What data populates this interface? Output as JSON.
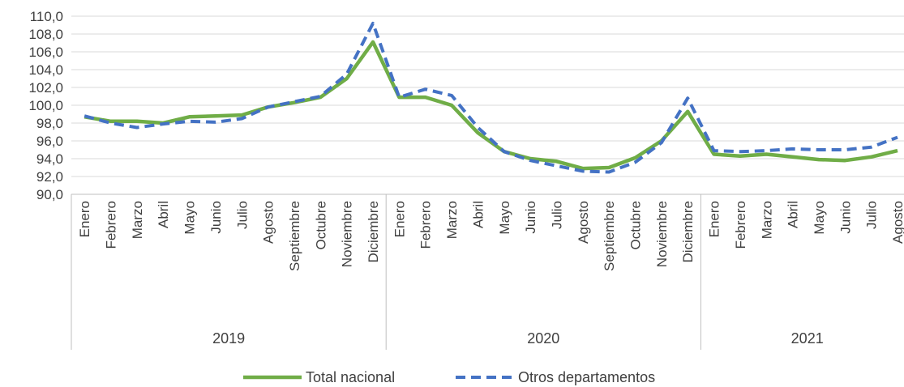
{
  "chart_data": {
    "type": "line",
    "title": "",
    "xlabel": "",
    "ylabel": "",
    "ylim": [
      90,
      110
    ],
    "yticks": [
      "90,0",
      "92,0",
      "94,0",
      "96,0",
      "98,0",
      "100,0",
      "102,0",
      "104,0",
      "106,0",
      "108,0",
      "110,0"
    ],
    "grid": true,
    "legend_position": "bottom",
    "categories": [
      "Enero",
      "Febrero",
      "Marzo",
      "Abril",
      "Mayo",
      "Junio",
      "Julio",
      "Agosto",
      "Septiembre",
      "Octubre",
      "Noviembre",
      "Diciembre",
      "Enero",
      "Febrero",
      "Marzo",
      "Abril",
      "Mayo",
      "Junio",
      "Julio",
      "Agosto",
      "Septiembre",
      "Octubre",
      "Noviembre",
      "Diciembre",
      "Enero",
      "Febrero",
      "Marzo",
      "Abril",
      "Mayo",
      "Junio",
      "Julio",
      "Agosto"
    ],
    "groups": [
      {
        "label": "2019",
        "start": 0,
        "count": 12
      },
      {
        "label": "2020",
        "start": 12,
        "count": 12
      },
      {
        "label": "2021",
        "start": 24,
        "count": 8
      }
    ],
    "series": [
      {
        "name": "Total nacional",
        "color": "#70AD47",
        "style": "solid",
        "values": [
          98.7,
          98.2,
          98.2,
          98.0,
          98.7,
          98.8,
          98.9,
          99.8,
          100.3,
          100.9,
          103.0,
          107.1,
          100.9,
          100.9,
          100.0,
          96.9,
          94.8,
          94.0,
          93.7,
          92.9,
          93.0,
          94.1,
          96.0,
          99.3,
          94.5,
          94.3,
          94.5,
          94.2,
          93.9,
          93.8,
          94.2,
          94.9
        ]
      },
      {
        "name": "Otros departamentos",
        "color": "#4472C4",
        "style": "dashed",
        "values": [
          98.8,
          98.0,
          97.5,
          97.9,
          98.2,
          98.1,
          98.5,
          99.8,
          100.4,
          101.0,
          103.5,
          109.2,
          100.9,
          101.8,
          101.1,
          97.5,
          94.8,
          93.8,
          93.2,
          92.6,
          92.5,
          93.6,
          95.8,
          100.8,
          94.9,
          94.8,
          94.9,
          95.1,
          95.0,
          95.0,
          95.3,
          96.4
        ]
      }
    ]
  }
}
